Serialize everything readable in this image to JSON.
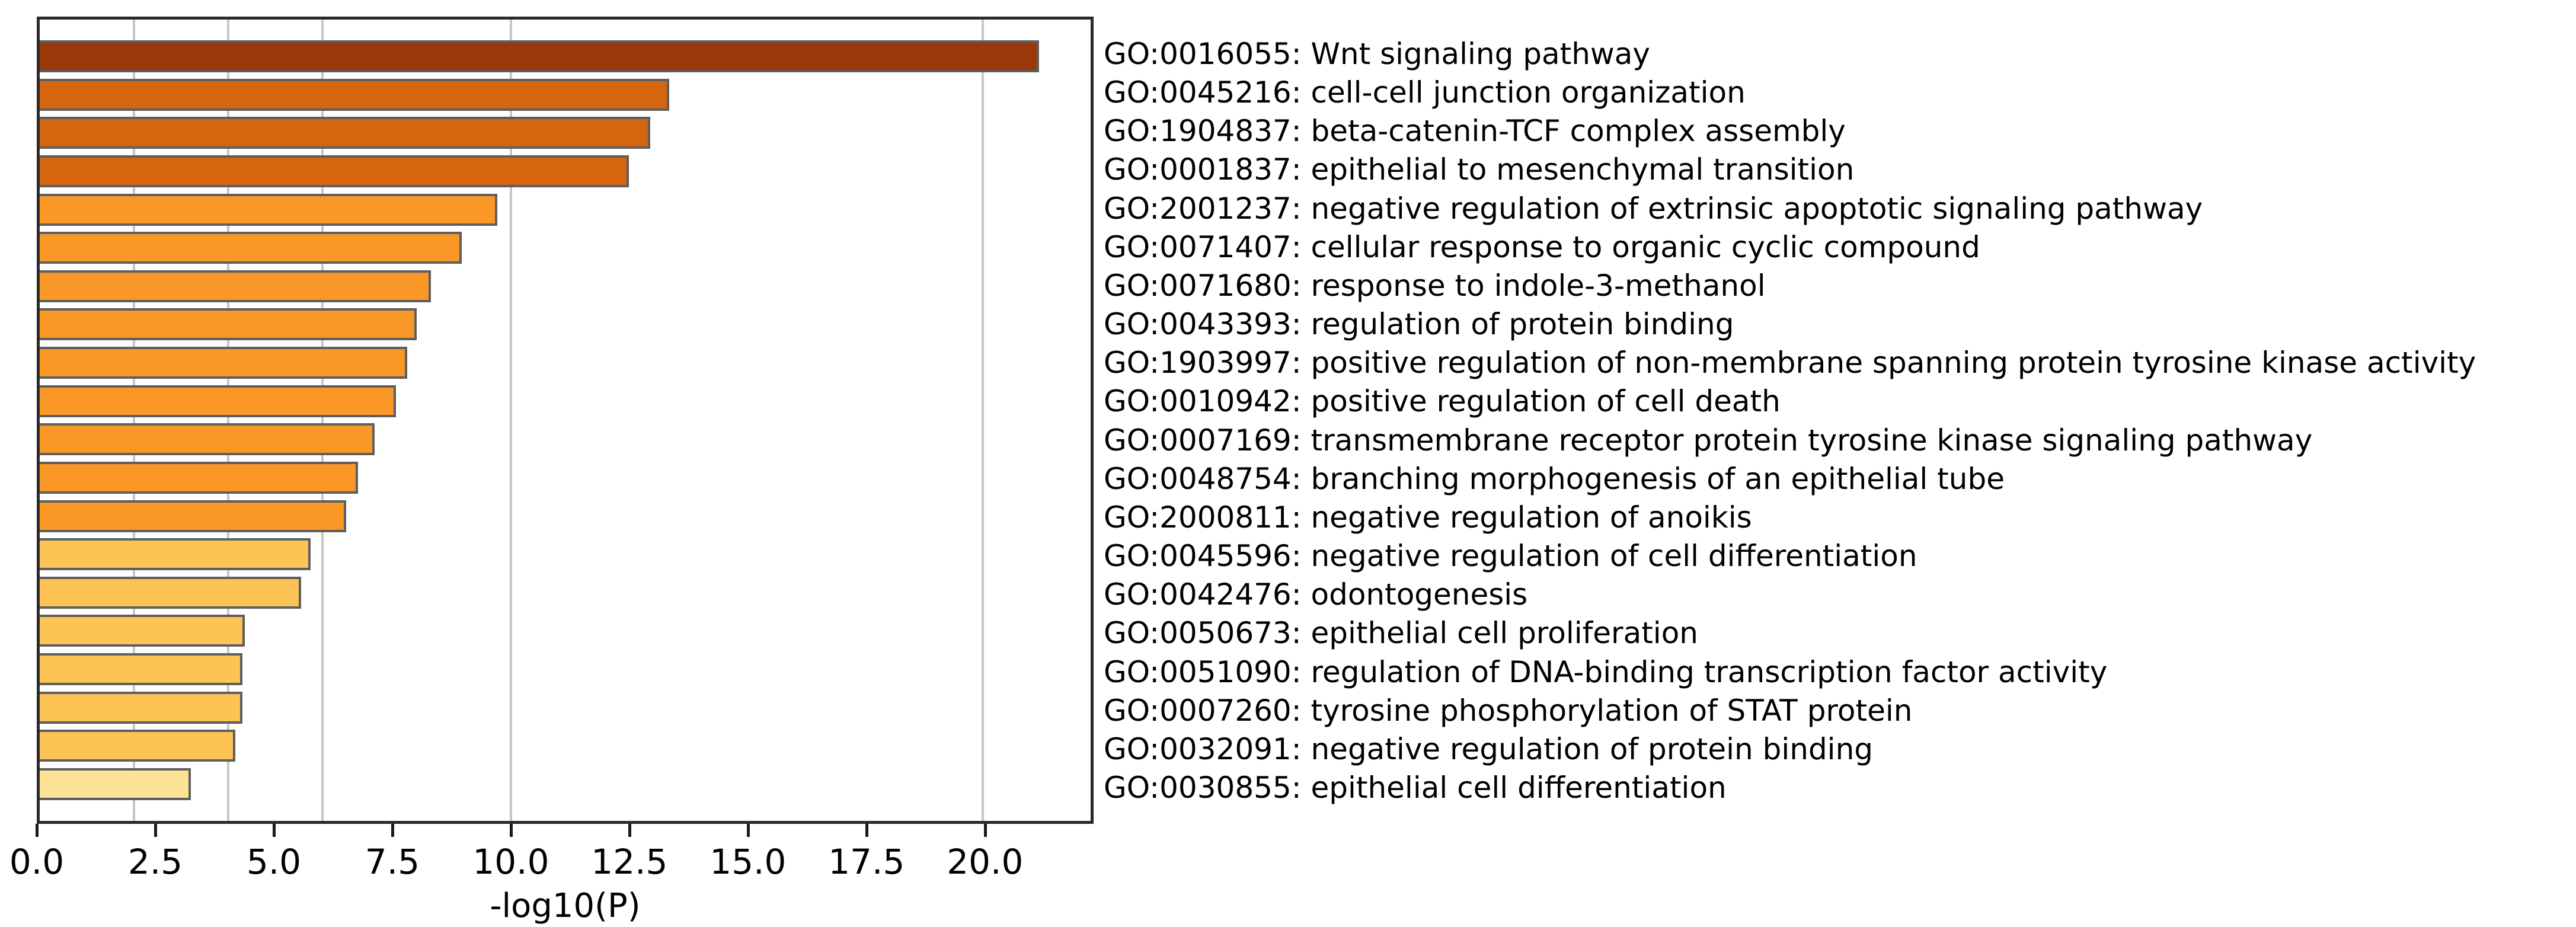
{
  "colors": {
    "background": "#ffffff",
    "bar_border": "#5e5e5e",
    "gridline": "#c6c6c6",
    "spine": "#2a2a2a",
    "text": "#000000",
    "bin_p20_plus": "#993808",
    "bin_p10_20": "#D6650F",
    "bin_p6_10": "#FA9827",
    "bin_p4_6": "#FDC355",
    "bin_p2_4": "#FDE396"
  },
  "chart_data": {
    "type": "bar",
    "orientation": "horizontal",
    "title": "",
    "xlabel": "-log10(P)",
    "ylabel": "",
    "xlim": [
      0,
      22.29
    ],
    "grid": "vertical reference lines at -log10(P) significance thresholds",
    "legend_position": "none",
    "tick_values": [
      0,
      2.5,
      5,
      7.5,
      10,
      12.5,
      15,
      17.5,
      20
    ],
    "tick_labels": [
      "0.0",
      "2.5",
      "5.0",
      "7.5",
      "10.0",
      "12.5",
      "15.0",
      "17.5",
      "20.0"
    ],
    "reference_lines": [
      2,
      4,
      6,
      10,
      20
    ],
    "categories": [
      "GO:0016055: Wnt signaling pathway",
      "GO:0045216: cell-cell junction organization",
      "GO:1904837: beta-catenin-TCF complex assembly",
      "GO:0001837: epithelial to mesenchymal transition",
      "GO:2001237: negative regulation of extrinsic apoptotic signaling pathway",
      "GO:0071407: cellular response to organic cyclic compound",
      "GO:0071680: response to indole-3-methanol",
      "GO:0043393: regulation of protein binding",
      "GO:1903997: positive regulation of non-membrane spanning protein tyrosine kinase activity",
      "GO:0010942: positive regulation of cell death",
      "GO:0007169: transmembrane receptor protein tyrosine kinase signaling pathway",
      "GO:0048754: branching morphogenesis of an epithelial tube",
      "GO:2000811: negative regulation of anoikis",
      "GO:0045596: negative regulation of cell differentiation",
      "GO:0042476: odontogenesis",
      "GO:0050673: epithelial cell proliferation",
      "GO:0051090: regulation of DNA-binding transcription factor activity",
      "GO:0007260: tyrosine phosphorylation of STAT protein",
      "GO:0032091: negative regulation of protein binding",
      "GO:0030855: epithelial cell differentiation"
    ],
    "values": [
      21.2,
      13.35,
      12.95,
      12.5,
      9.7,
      8.95,
      8.3,
      8.0,
      7.8,
      7.55,
      7.1,
      6.75,
      6.5,
      5.75,
      5.55,
      4.35,
      4.3,
      4.3,
      4.15,
      3.2
    ],
    "bar_colors": [
      "#993808",
      "#D6650F",
      "#D6650F",
      "#D6650F",
      "#FA9827",
      "#FA9827",
      "#FA9827",
      "#FA9827",
      "#FA9827",
      "#FA9827",
      "#FA9827",
      "#FA9827",
      "#FA9827",
      "#FDC355",
      "#FDC355",
      "#FDC355",
      "#FDC355",
      "#FDC355",
      "#FDC355",
      "#FDE396"
    ]
  }
}
